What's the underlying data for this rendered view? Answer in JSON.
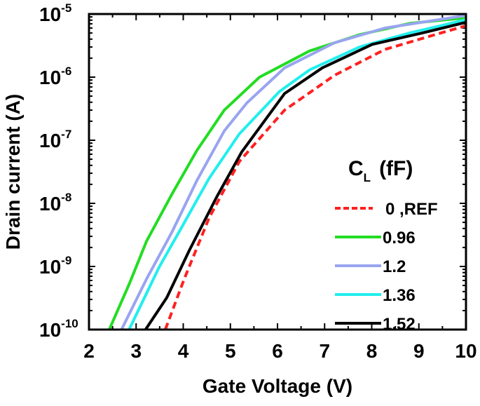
{
  "chart_data": {
    "type": "line",
    "title": "",
    "xlabel": "Gate Voltage (V)",
    "ylabel": "Drain current (A)",
    "xlim": [
      2,
      10
    ],
    "ylim": [
      1e-10,
      1e-05
    ],
    "yscale": "log",
    "grid": false,
    "xticks": [
      "2",
      "3",
      "4",
      "5",
      "6",
      "7",
      "8",
      "9",
      "10"
    ],
    "yticks": [
      {
        "base": "10",
        "exp": "-5"
      },
      {
        "base": "10",
        "exp": "-6"
      },
      {
        "base": "10",
        "exp": "-7"
      },
      {
        "base": "10",
        "exp": "-8"
      },
      {
        "base": "10",
        "exp": "-9"
      },
      {
        "base": "10",
        "exp": "-10"
      }
    ],
    "legend": {
      "title_main": "C",
      "title_sub": "L",
      "title_unit": "(fF)",
      "placement": "right"
    },
    "series": [
      {
        "name": "0 ,REF",
        "color": "#ff2020",
        "dash": true,
        "x": [
          3.62,
          4.02,
          4.55,
          5.19,
          6.15,
          7.21,
          8.28,
          9.34,
          10
        ],
        "y": [
          1e-10,
          6.3e-10,
          5.9e-09,
          4.6e-08,
          3e-07,
          1.07e-06,
          2.75e-06,
          4.7e-06,
          6.5e-06
        ]
      },
      {
        "name": "0.96",
        "color": "#22dd22",
        "dash": false,
        "x": [
          2.43,
          2.85,
          3.22,
          3.76,
          4.29,
          4.87,
          5.62,
          6.68,
          7.74,
          8.8,
          10
        ],
        "y": [
          1e-10,
          5.2e-10,
          2.5e-09,
          1.4e-08,
          6.9e-08,
          3e-07,
          1e-06,
          2.6e-06,
          4.7e-06,
          7.1e-06,
          8.7e-06
        ]
      },
      {
        "name": "1.2",
        "color": "#99a4f0",
        "dash": false,
        "x": [
          2.69,
          3.22,
          3.76,
          4.29,
          4.87,
          5.35,
          6.15,
          7.21,
          8.28,
          10
        ],
        "y": [
          1e-10,
          6.3e-10,
          3.5e-09,
          2.3e-08,
          1.4e-07,
          3.9e-07,
          1.4e-06,
          3.5e-06,
          6e-06,
          9.5e-06
        ]
      },
      {
        "name": "1.36",
        "color": "#22eeee",
        "dash": false,
        "x": [
          2.85,
          3.49,
          4.02,
          4.55,
          5.19,
          6.04,
          6.68,
          7.74,
          8.8,
          10
        ],
        "y": [
          1e-10,
          9.8e-10,
          4.9e-09,
          2.5e-08,
          1.26e-07,
          5.9e-07,
          1.3e-06,
          3e-06,
          5e-06,
          8.1e-06
        ]
      },
      {
        "name": "1.52",
        "color": "#000000",
        "dash": false,
        "x": [
          3.2,
          3.65,
          4.13,
          4.71,
          5.24,
          6.15,
          6.95,
          8.01,
          9.07,
          10
        ],
        "y": [
          1e-10,
          3.2e-10,
          1.8e-09,
          1.26e-08,
          6.5e-08,
          5.5e-07,
          1.4e-06,
          3.3e-06,
          5e-06,
          7.4e-06
        ]
      }
    ]
  }
}
